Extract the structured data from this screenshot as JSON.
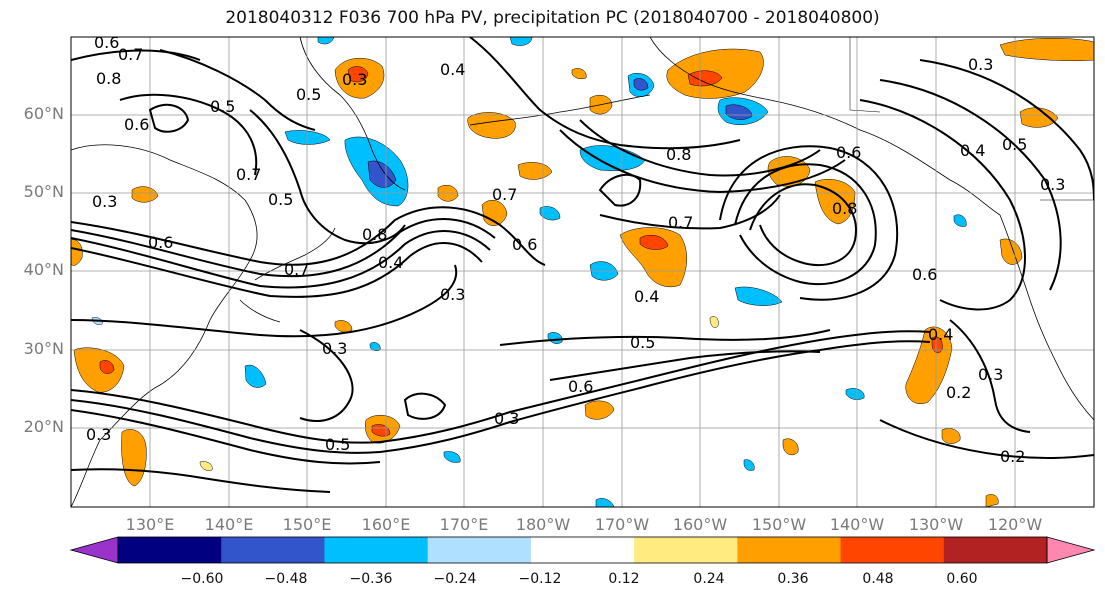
{
  "title": "2018040312 F036 700 hPa PV, precipitation PC (2018040700 - 2018040800)",
  "lat_labels": [
    "60°N",
    "50°N",
    "40°N",
    "30°N",
    "20°N"
  ],
  "lon_labels": [
    "130°E",
    "140°E",
    "150°E",
    "160°E",
    "170°E",
    "180°W",
    "170°W",
    "160°W",
    "150°W",
    "140°W",
    "130°W",
    "120°W"
  ],
  "contour_labels": [
    {
      "text": "0.6"
    },
    {
      "text": "0.7"
    },
    {
      "text": "0.8"
    },
    {
      "text": "0.6"
    },
    {
      "text": "0.5"
    },
    {
      "text": "0.7"
    },
    {
      "text": "0.5"
    },
    {
      "text": "0.3"
    },
    {
      "text": "0.8"
    },
    {
      "text": "0.7"
    },
    {
      "text": "0.4"
    },
    {
      "text": "0.3"
    },
    {
      "text": "0.7"
    },
    {
      "text": "0.6"
    },
    {
      "text": "0.3"
    },
    {
      "text": "0.4"
    },
    {
      "text": "0.5"
    },
    {
      "text": "0.6"
    },
    {
      "text": "0.3"
    },
    {
      "text": "0.5"
    },
    {
      "text": "0.3"
    },
    {
      "text": "0.4"
    },
    {
      "text": "0.5"
    },
    {
      "text": "0.6"
    },
    {
      "text": "0.7"
    },
    {
      "text": "0.8"
    },
    {
      "text": "0.6"
    },
    {
      "text": "0.8"
    },
    {
      "text": "0.6"
    },
    {
      "text": "0.4"
    },
    {
      "text": "0.5"
    },
    {
      "text": "0.3"
    },
    {
      "text": "0.3"
    },
    {
      "text": "0.3"
    },
    {
      "text": "0.2"
    },
    {
      "text": "0.2"
    },
    {
      "text": "0.3"
    },
    {
      "text": "0.4"
    }
  ],
  "colorbar": {
    "colors": [
      "#9933cc",
      "#000080",
      "#3355cc",
      "#00bfff",
      "#b0e0ff",
      "#ffffff",
      "#ffeb80",
      "#ffa000",
      "#ff4500",
      "#b22222",
      "#ff88b0"
    ],
    "tick_labels": [
      "−0.60",
      "−0.48",
      "−0.36",
      "−0.24",
      "−0.12",
      "0.12",
      "0.24",
      "0.36",
      "0.48",
      "0.60"
    ]
  }
}
